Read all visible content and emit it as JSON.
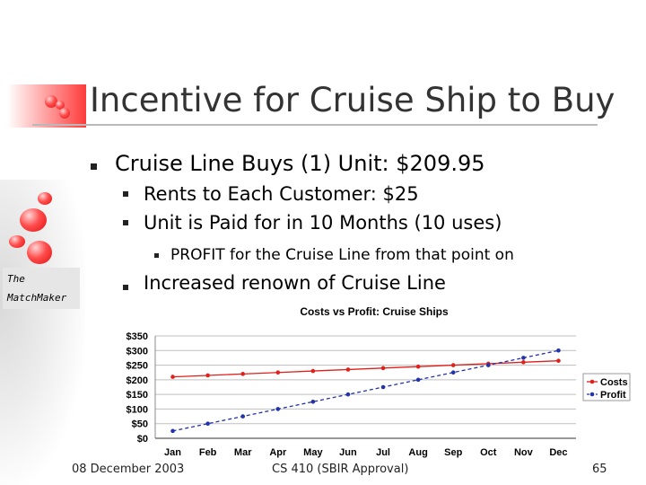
{
  "slide": {
    "title": "Incentive for Cruise Ship to Buy",
    "bullets": {
      "l1": "Cruise Line Buys (1) Unit: $209.95",
      "l2a": "Rents to Each Customer: $25",
      "l2b": "Unit is Paid for in 10 Months (10 uses)",
      "l3": "PROFIT for the Cruise Line from that point on",
      "l2c": "Increased renown of Cruise Line"
    },
    "logo_line1": "The",
    "logo_line2": "MatchMaker",
    "footer_date": "08 December 2003",
    "footer_course": "CS 410 (SBIR Approval)",
    "page_number": "65"
  },
  "colors": {
    "costs": "#e0201b",
    "profit": "#2233aa",
    "grid": "#bfbfbf",
    "accent": "#ff3b3b"
  },
  "chart_data": {
    "type": "line",
    "title": "Costs vs Profit: Cruise Ships",
    "categories": [
      "Jan",
      "Feb",
      "Mar",
      "Apr",
      "May",
      "Jun",
      "Jul",
      "Aug",
      "Sep",
      "Oct",
      "Nov",
      "Dec"
    ],
    "ylim": [
      0,
      350
    ],
    "yticks": [
      "$0",
      "$50",
      "$100",
      "$150",
      "$200",
      "$250",
      "$300",
      "$350"
    ],
    "grid": true,
    "legend": "right",
    "series": [
      {
        "name": "Costs",
        "values": [
          210,
          215,
          220,
          225,
          230,
          235,
          240,
          245,
          250,
          255,
          260,
          265
        ]
      },
      {
        "name": "Profit",
        "values": [
          25,
          50,
          75,
          100,
          125,
          150,
          175,
          200,
          225,
          250,
          275,
          300
        ]
      }
    ]
  }
}
